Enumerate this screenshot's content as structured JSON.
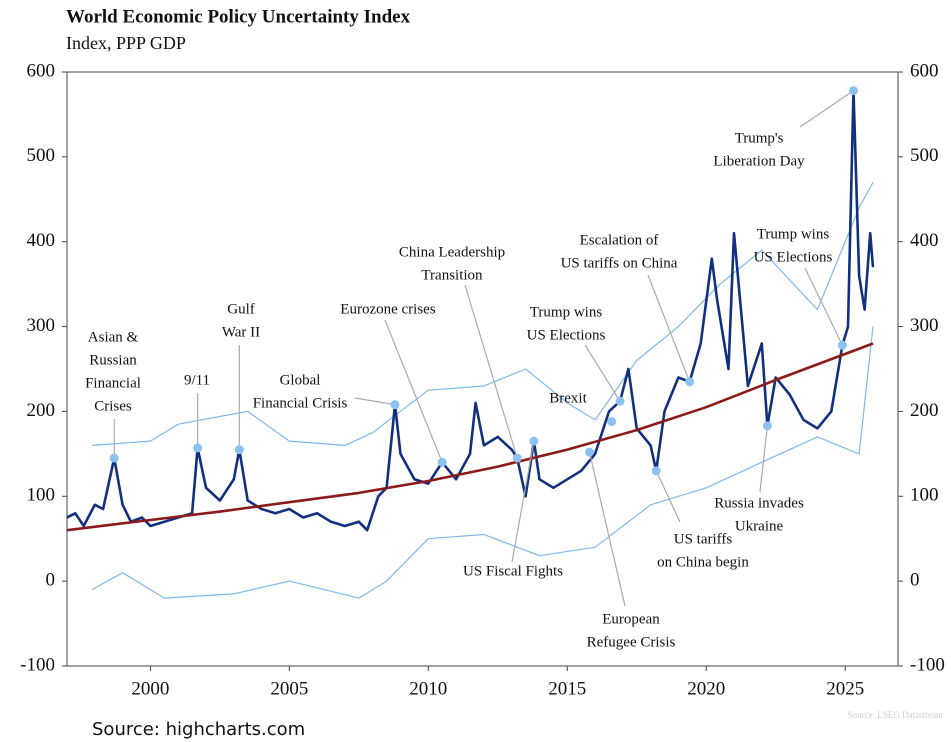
{
  "chart_data": {
    "type": "line",
    "title": "World Economic Policy Uncertainty Index",
    "subtitle": "Index, PPP GDP",
    "source": "Source: highcharts.com",
    "credit": "Source: LSEG Datastream",
    "xlim": [
      1997,
      2026.9
    ],
    "xticks": [
      2000,
      2005,
      2010,
      2015,
      2020,
      2025
    ],
    "ylim": [
      -100,
      600
    ],
    "yticks": [
      -100,
      0,
      100,
      200,
      300,
      400,
      500,
      600
    ],
    "series": [
      {
        "color": "#7fb8ee",
        "x": [
          1997.9,
          2000,
          2001,
          2003.5,
          2005,
          2007,
          2008,
          2010,
          2012,
          2013.5,
          2015,
          2016,
          2017.5,
          2019,
          2020.5,
          2022,
          2024,
          2025.5,
          2026
        ],
        "values": [
          160,
          165,
          185,
          200,
          165,
          160,
          175,
          225,
          230,
          250,
          210,
          190,
          260,
          300,
          350,
          390,
          320,
          440,
          470
        ]
      },
      {
        "color": "#7fb8ee",
        "x": [
          1997.9,
          1999,
          2000.5,
          2003,
          2005,
          2007.5,
          2008.5,
          2010,
          2012,
          2014,
          2016,
          2018,
          2020,
          2022,
          2024,
          2025.5,
          2026
        ],
        "values": [
          -10,
          10,
          -20,
          -15,
          0,
          -20,
          0,
          50,
          55,
          30,
          40,
          90,
          110,
          140,
          170,
          150,
          300
        ]
      },
      {
        "color": "#13307f",
        "x": [
          1997.0,
          1997.3,
          1997.6,
          1998.0,
          1998.3,
          1998.7,
          1999.0,
          1999.3,
          1999.7,
          2000.0,
          2000.5,
          2001.0,
          2001.5,
          2001.7,
          2002.0,
          2002.5,
          2003.0,
          2003.2,
          2003.5,
          2004.0,
          2004.5,
          2005.0,
          2005.5,
          2006.0,
          2006.5,
          2007.0,
          2007.5,
          2007.8,
          2008.2,
          2008.5,
          2008.8,
          2009.0,
          2009.5,
          2010.0,
          2010.5,
          2011.0,
          2011.5,
          2011.7,
          2012.0,
          2012.5,
          2013.0,
          2013.2,
          2013.5,
          2013.8,
          2014.0,
          2014.5,
          2015.0,
          2015.5,
          2016.0,
          2016.5,
          2016.9,
          2017.2,
          2017.5,
          2018.0,
          2018.2,
          2018.5,
          2019.0,
          2019.4,
          2019.8,
          2020.2,
          2020.4,
          2020.8,
          2021.0,
          2021.5,
          2022.0,
          2022.2,
          2022.5,
          2023.0,
          2023.5,
          2024.0,
          2024.5,
          2024.9,
          2025.1,
          2025.3,
          2025.5,
          2025.7,
          2025.9,
          2026.0
        ],
        "values": [
          75,
          80,
          65,
          90,
          85,
          145,
          90,
          70,
          75,
          65,
          70,
          75,
          80,
          157,
          110,
          95,
          120,
          155,
          95,
          85,
          80,
          85,
          75,
          80,
          70,
          65,
          70,
          60,
          100,
          110,
          208,
          150,
          120,
          115,
          140,
          120,
          150,
          210,
          160,
          170,
          155,
          145,
          100,
          165,
          120,
          110,
          120,
          130,
          150,
          200,
          212,
          250,
          180,
          160,
          130,
          200,
          240,
          235,
          280,
          380,
          330,
          250,
          410,
          230,
          280,
          183,
          240,
          220,
          190,
          180,
          200,
          278,
          300,
          578,
          360,
          320,
          410,
          370
        ]
      },
      {
        "color": "#8b1a1a",
        "x": [
          1997,
          2000,
          2002.5,
          2005,
          2007.5,
          2010,
          2012.5,
          2015,
          2017.5,
          2020,
          2022.5,
          2026
        ],
        "values": [
          60,
          72,
          82,
          93,
          104,
          118,
          135,
          155,
          178,
          205,
          237,
          280
        ]
      }
    ],
    "annotations": [
      {
        "text": [
          "Asian &",
          "Russian",
          "Financial",
          "Crises"
        ],
        "x": 1998.7,
        "y": 145
      },
      {
        "text": [
          "9/11"
        ],
        "x": 2001.7,
        "y": 157
      },
      {
        "text": [
          "Gulf",
          "War II"
        ],
        "x": 2003.2,
        "y": 155
      },
      {
        "text": [
          "Global",
          "Financial Crisis"
        ],
        "x": 2008.8,
        "y": 208
      },
      {
        "text": [
          "Eurozone crises"
        ],
        "x": 2010.5,
        "y": 140
      },
      {
        "text": [
          "China Leadership",
          "Transition"
        ],
        "x": 2013.2,
        "y": 145
      },
      {
        "text": [
          "US Fiscal Fights"
        ],
        "x": 2013.8,
        "y": 165
      },
      {
        "text": [
          "European",
          "Refugee Crisis"
        ],
        "x": 2015.8,
        "y": 152
      },
      {
        "text": [
          "Brexit"
        ],
        "x": 2016.6,
        "y": 188
      },
      {
        "text": [
          "Trump wins",
          "US Elections"
        ],
        "x": 2016.9,
        "y": 212
      },
      {
        "text": [
          "Escalation of",
          "US tariffs on China"
        ],
        "x": 2019.4,
        "y": 235
      },
      {
        "text": [
          "US tariffs",
          "on China begin"
        ],
        "x": 2018.2,
        "y": 130
      },
      {
        "text": [
          "Russia invades",
          "Ukraine"
        ],
        "x": 2022.2,
        "y": 183
      },
      {
        "text": [
          "Trump wins",
          "US Elections"
        ],
        "x": 2024.9,
        "y": 278
      },
      {
        "text": [
          "Trump's",
          "Liberation Day"
        ],
        "x": 2025.3,
        "y": 578
      }
    ]
  }
}
